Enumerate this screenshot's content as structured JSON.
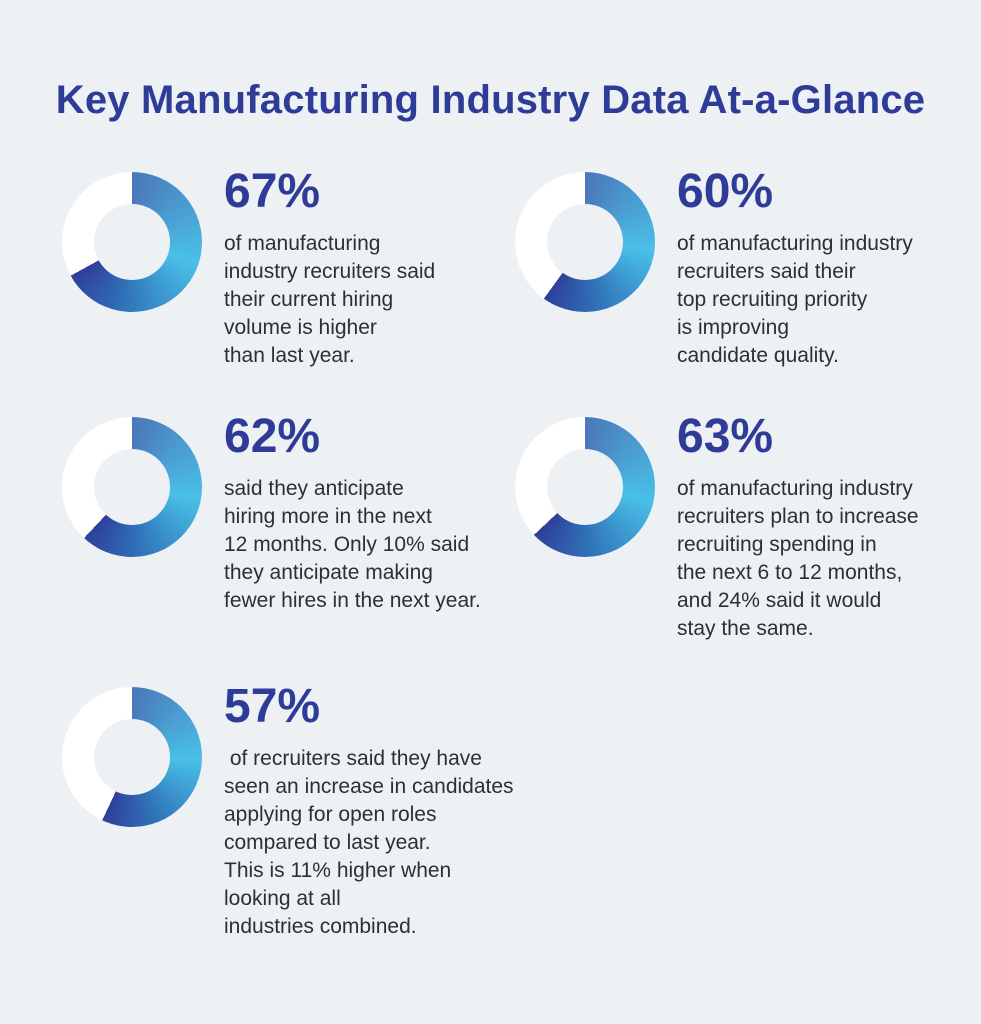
{
  "title": "Key Manufacturing Industry Data At-a-Glance",
  "background_color": "#edf1f4",
  "accent_blue": "#2e3c98",
  "body_text_color": "#302f2f",
  "donut_style": {
    "gradient_start": "#4b77b9",
    "gradient_light": "#49c0e8",
    "gradient_deep": "#2f72b8",
    "gradient_end": "#2f3f99",
    "remainder_color": "#ffffff"
  },
  "items": [
    {
      "percent": "67%",
      "value": 67,
      "description": "of manufacturing\nindustry recruiters said\ntheir current hiring\nvolume is higher\nthan last year."
    },
    {
      "percent": "60%",
      "value": 60,
      "description": "of manufacturing industry\nrecruiters said their\ntop recruiting priority\nis improving\ncandidate quality."
    },
    {
      "percent": "62%",
      "value": 62,
      "description": "said they anticipate\nhiring more in the next\n12 months. Only 10% said\nthey anticipate making\nfewer hires in the next year."
    },
    {
      "percent": "63%",
      "value": 63,
      "description": "of manufacturing industry\nrecruiters plan to increase\nrecruiting spending in\nthe next 6 to 12 months,\nand 24% said it would\nstay the same."
    },
    {
      "percent": "57%",
      "value": 57,
      "description": " of recruiters said they have\nseen an increase in candidates\napplying for open roles\ncompared to last year.\nThis is 11% higher when\nlooking at all\nindustries combined."
    }
  ],
  "chart_data": [
    {
      "type": "pie",
      "subtype": "donut",
      "label": "67%",
      "values": [
        67,
        33
      ],
      "categories": [
        "filled",
        "remainder"
      ],
      "caption": "of manufacturing industry recruiters said their current hiring volume is higher than last year."
    },
    {
      "type": "pie",
      "subtype": "donut",
      "label": "60%",
      "values": [
        60,
        40
      ],
      "categories": [
        "filled",
        "remainder"
      ],
      "caption": "of manufacturing industry recruiters said their top recruiting priority is improving candidate quality."
    },
    {
      "type": "pie",
      "subtype": "donut",
      "label": "62%",
      "values": [
        62,
        38
      ],
      "categories": [
        "filled",
        "remainder"
      ],
      "caption": "said they anticipate hiring more in the next 12 months. Only 10% said they anticipate making fewer hires in the next year."
    },
    {
      "type": "pie",
      "subtype": "donut",
      "label": "63%",
      "values": [
        63,
        37
      ],
      "categories": [
        "filled",
        "remainder"
      ],
      "caption": "of manufacturing industry recruiters plan to increase recruiting spending in the next 6 to 12 months, and 24% said it would stay the same."
    },
    {
      "type": "pie",
      "subtype": "donut",
      "label": "57%",
      "values": [
        57,
        43
      ],
      "categories": [
        "filled",
        "remainder"
      ],
      "caption": "of recruiters said they have seen an increase in candidates applying for open roles compared to last year. This is 11% higher when looking at all industries combined."
    }
  ]
}
